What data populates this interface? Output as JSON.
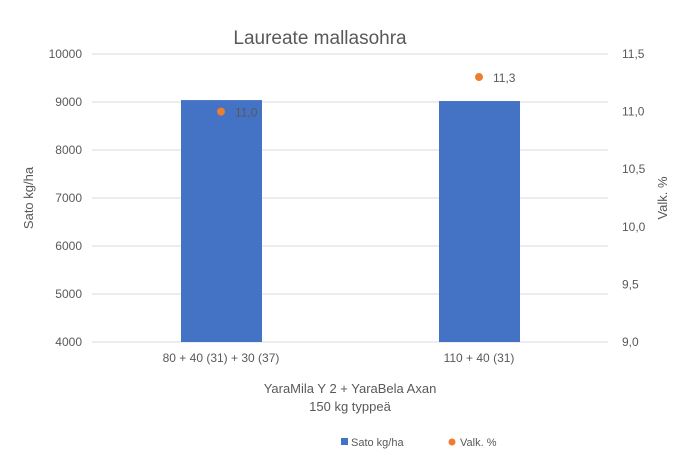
{
  "chart_data": {
    "type": "bar+scatter",
    "title": "Laureate mallasohra",
    "categories": [
      "80 + 40 (31) + 30 (37)",
      "110 + 40 (31)"
    ],
    "xlabel": [
      "YaraMila Y 2 + YaraBela Axan",
      "150 kg typpeä"
    ],
    "ylabel": "Sato kg/ha",
    "y2label": "Valk. %",
    "ylim": [
      4000,
      10000
    ],
    "yticks": [
      "4000",
      "5000",
      "6000",
      "7000",
      "8000",
      "9000",
      "10000"
    ],
    "y2lim": [
      9.0,
      11.5
    ],
    "y2ticks": [
      "9,0",
      "9,5",
      "10,0",
      "10,5",
      "11,0",
      "11,5"
    ],
    "grid": true,
    "legend_position": "bottom",
    "series": [
      {
        "name": "Sato kg/ha",
        "type": "bar",
        "axis": "left",
        "color": "#4472C4",
        "values": [
          9040,
          9020
        ]
      },
      {
        "name": "Valk. %",
        "type": "scatter",
        "axis": "right",
        "color": "#ED7D31",
        "values": [
          11.0,
          11.3
        ],
        "labels": [
          "11,0",
          "11,3"
        ]
      }
    ]
  }
}
